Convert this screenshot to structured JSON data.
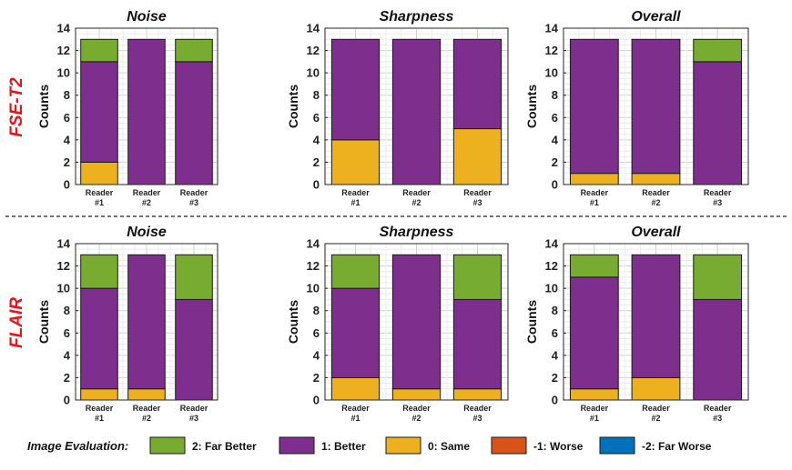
{
  "row_labels": [
    "FSE-T2",
    "FLAIR"
  ],
  "chart_data": [
    {
      "type": "bar",
      "stacked": true,
      "title": "Noise",
      "ylabel": "Counts",
      "ylim": [
        0,
        14
      ],
      "yticks": [
        0,
        2,
        4,
        6,
        8,
        10,
        12,
        14
      ],
      "grid": true,
      "categories": [
        [
          "Reader",
          "#1"
        ],
        [
          "Reader",
          "#2"
        ],
        [
          "Reader",
          "#3"
        ]
      ],
      "series": [
        {
          "name": "-2: Far Worse",
          "values": [
            0,
            0,
            0
          ]
        },
        {
          "name": "-1: Worse",
          "values": [
            0,
            0,
            0
          ]
        },
        {
          "name": "0: Same",
          "values": [
            2,
            0,
            0
          ]
        },
        {
          "name": "1: Better",
          "values": [
            9,
            13,
            11
          ]
        },
        {
          "name": "2: Far Better",
          "values": [
            2,
            0,
            2
          ]
        }
      ]
    },
    {
      "type": "bar",
      "stacked": true,
      "title": "Sharpness",
      "ylabel": "Counts",
      "ylim": [
        0,
        14
      ],
      "yticks": [
        0,
        2,
        4,
        6,
        8,
        10,
        12,
        14
      ],
      "grid": true,
      "categories": [
        [
          "Reader",
          "#1"
        ],
        [
          "Reader",
          "#2"
        ],
        [
          "Reader",
          "#3"
        ]
      ],
      "series": [
        {
          "name": "-2: Far Worse",
          "values": [
            0,
            0,
            0
          ]
        },
        {
          "name": "-1: Worse",
          "values": [
            0,
            0,
            0
          ]
        },
        {
          "name": "0: Same",
          "values": [
            4,
            0,
            5
          ]
        },
        {
          "name": "1: Better",
          "values": [
            9,
            13,
            8
          ]
        },
        {
          "name": "2: Far Better",
          "values": [
            0,
            0,
            0
          ]
        }
      ]
    },
    {
      "type": "bar",
      "stacked": true,
      "title": "Overall",
      "ylabel": "Counts",
      "ylim": [
        0,
        14
      ],
      "yticks": [
        0,
        2,
        4,
        6,
        8,
        10,
        12,
        14
      ],
      "grid": true,
      "categories": [
        [
          "Reader",
          "#1"
        ],
        [
          "Reader",
          "#2"
        ],
        [
          "Reader",
          "#3"
        ]
      ],
      "series": [
        {
          "name": "-2: Far Worse",
          "values": [
            0,
            0,
            0
          ]
        },
        {
          "name": "-1: Worse",
          "values": [
            0,
            0,
            0
          ]
        },
        {
          "name": "0: Same",
          "values": [
            1,
            1,
            0
          ]
        },
        {
          "name": "1: Better",
          "values": [
            12,
            12,
            11
          ]
        },
        {
          "name": "2: Far Better",
          "values": [
            0,
            0,
            2
          ]
        }
      ]
    },
    {
      "type": "bar",
      "stacked": true,
      "title": "Noise",
      "ylabel": "Counts",
      "ylim": [
        0,
        14
      ],
      "yticks": [
        0,
        2,
        4,
        6,
        8,
        10,
        12,
        14
      ],
      "grid": true,
      "categories": [
        [
          "Reader",
          "#1"
        ],
        [
          "Reader",
          "#2"
        ],
        [
          "Reader",
          "#3"
        ]
      ],
      "series": [
        {
          "name": "-2: Far Worse",
          "values": [
            0,
            0,
            0
          ]
        },
        {
          "name": "-1: Worse",
          "values": [
            0,
            0,
            0
          ]
        },
        {
          "name": "0: Same",
          "values": [
            1,
            1,
            0
          ]
        },
        {
          "name": "1: Better",
          "values": [
            9,
            12,
            9
          ]
        },
        {
          "name": "2: Far Better",
          "values": [
            3,
            0,
            4
          ]
        }
      ]
    },
    {
      "type": "bar",
      "stacked": true,
      "title": "Sharpness",
      "ylabel": "Counts",
      "ylim": [
        0,
        14
      ],
      "yticks": [
        0,
        2,
        4,
        6,
        8,
        10,
        12,
        14
      ],
      "grid": true,
      "categories": [
        [
          "Reader",
          "#1"
        ],
        [
          "Reader",
          "#2"
        ],
        [
          "Reader",
          "#3"
        ]
      ],
      "series": [
        {
          "name": "-2: Far Worse",
          "values": [
            0,
            0,
            0
          ]
        },
        {
          "name": "-1: Worse",
          "values": [
            0,
            0,
            0
          ]
        },
        {
          "name": "0: Same",
          "values": [
            2,
            1,
            1
          ]
        },
        {
          "name": "1: Better",
          "values": [
            8,
            12,
            8
          ]
        },
        {
          "name": "2: Far Better",
          "values": [
            3,
            0,
            4
          ]
        }
      ]
    },
    {
      "type": "bar",
      "stacked": true,
      "title": "Overall",
      "ylabel": "Counts",
      "ylim": [
        0,
        14
      ],
      "yticks": [
        0,
        2,
        4,
        6,
        8,
        10,
        12,
        14
      ],
      "grid": true,
      "categories": [
        [
          "Reader",
          "#1"
        ],
        [
          "Reader",
          "#2"
        ],
        [
          "Reader",
          "#3"
        ]
      ],
      "series": [
        {
          "name": "-2: Far Worse",
          "values": [
            0,
            0,
            0
          ]
        },
        {
          "name": "-1: Worse",
          "values": [
            0,
            0,
            0
          ]
        },
        {
          "name": "0: Same",
          "values": [
            1,
            2,
            0
          ]
        },
        {
          "name": "1: Better",
          "values": [
            10,
            11,
            9
          ]
        },
        {
          "name": "2: Far Better",
          "values": [
            2,
            0,
            4
          ]
        }
      ]
    }
  ],
  "legend": {
    "title": "Image Evaluation:",
    "placement": "bottom",
    "items": [
      {
        "label": "2: Far Better",
        "color": "#77ac30"
      },
      {
        "label": "1: Better",
        "color": "#7e2f8e"
      },
      {
        "label": "0: Same",
        "color": "#edb120"
      },
      {
        "label": "-1: Worse",
        "color": "#d95319"
      },
      {
        "label": "-2: Far Worse",
        "color": "#0072bd"
      }
    ]
  }
}
